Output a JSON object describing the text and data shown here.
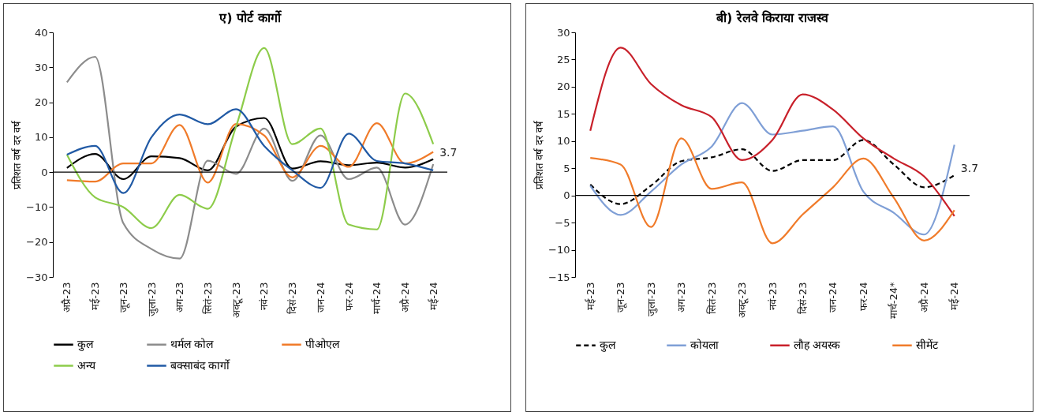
{
  "chart_data": [
    {
      "type": "line",
      "title": "ए) पोर्ट कार्गो",
      "ylabel": "प्रतिशत वर्ष दर वर्ष",
      "categories": [
        "अप्रै-23",
        "मई-23",
        "जून-23",
        "जुला-23",
        "अग-23",
        "सितं-23",
        "अक्टू-23",
        "नवं-23",
        "दिसं-23",
        "जन-24",
        "फर-24",
        "मार्च-24",
        "अप्रै-24",
        "मई-24"
      ],
      "series": [
        {
          "name": "कुल",
          "color": "#000000",
          "line_style": "solid",
          "values": [
            1.2,
            5.2,
            -2,
            4.5,
            4,
            0.5,
            13,
            15.5,
            1,
            3.1,
            2,
            2.7,
            1.3,
            3.7
          ]
        },
        {
          "name": "थर्मल कोल",
          "color": "#8c8c8c",
          "line_style": "solid",
          "values": [
            25.7,
            33,
            -14.6,
            -22,
            -24.7,
            3.3,
            -0.5,
            12.5,
            -2.5,
            10.5,
            -2,
            1.3,
            -15,
            2.3
          ]
        },
        {
          "name": "पीओएल",
          "color": "#f07b2a",
          "line_style": "solid",
          "values": [
            -2.3,
            -2.7,
            2.5,
            2.5,
            13.5,
            -3,
            13.8,
            10.5,
            -1.5,
            7.5,
            1.5,
            14,
            2.5,
            5.8
          ]
        },
        {
          "name": "अन्य",
          "color": "#8dcc4a",
          "line_style": "solid",
          "values": [
            5,
            -7.2,
            -10,
            -16,
            -6.5,
            -10.5,
            13,
            35.5,
            8,
            12.5,
            -15,
            -16.4,
            22.5,
            8
          ]
        },
        {
          "name": "बक्साबंद कार्गो",
          "color": "#215aa5",
          "line_style": "solid",
          "values": [
            5,
            7.5,
            -6,
            10,
            16.5,
            13.7,
            18,
            7.5,
            0.5,
            -4.5,
            11,
            3.2,
            2.5,
            0.5
          ]
        }
      ],
      "ylim": [
        -30,
        40
      ],
      "yticks": [
        -30,
        -20,
        -10,
        0,
        10,
        20,
        30,
        40
      ],
      "grid": false,
      "legend": "bottom",
      "marker": "none",
      "ref_lines": [
        {
          "axis": "y",
          "value": 0,
          "color": "#000000"
        }
      ],
      "annotations": [
        {
          "text": "3.7",
          "x": "मई-24",
          "y": 3.7
        }
      ]
    },
    {
      "type": "line",
      "title": "बी) रेलवे किराया राजस्व",
      "ylabel": "प्रतिशत वर्ष दर वर्ष",
      "categories": [
        "मई-23",
        "जून-23",
        "जुला-23",
        "अग-23",
        "सितं-23",
        "अक्टू-23",
        "नवं-23",
        "दिसं-23",
        "जन-24",
        "फर-24",
        "मार्च-24*",
        "अप्रै-24",
        "मई-24"
      ],
      "series": [
        {
          "name": "कुल",
          "color": "#000000",
          "line_style": "dashed",
          "values": [
            2,
            -1.6,
            1.8,
            6.3,
            7,
            8.5,
            4.5,
            6.5,
            6.5,
            10.2,
            5.7,
            1.5,
            3.7
          ]
        },
        {
          "name": "कोयला",
          "color": "#7f9fd6",
          "line_style": "solid",
          "values": [
            1.8,
            -3.6,
            0.7,
            5.7,
            9,
            17,
            11.2,
            11.9,
            12.7,
            0.7,
            -3.2,
            -7.2,
            9.3
          ]
        },
        {
          "name": "लौह अयस्क",
          "color": "#c8202a",
          "line_style": "solid",
          "values": [
            11.9,
            27.2,
            20.5,
            16.6,
            14.4,
            6.5,
            10.2,
            18.6,
            15.8,
            10.5,
            6.8,
            3.5,
            -3.8
          ]
        },
        {
          "name": "सीमेंट",
          "color": "#f07b2a",
          "line_style": "solid",
          "values": [
            6.9,
            5.7,
            -5.8,
            10.5,
            1.2,
            2.4,
            -8.8,
            -3.5,
            1.5,
            6.8,
            -0.4,
            -8.3,
            -2.7
          ]
        }
      ],
      "ylim": [
        -15,
        30
      ],
      "yticks": [
        -15,
        -10,
        -5,
        0,
        5,
        10,
        15,
        20,
        25,
        30
      ],
      "grid": false,
      "legend": "bottom",
      "marker": "none",
      "ref_lines": [
        {
          "axis": "y",
          "value": 0,
          "color": "#000000"
        }
      ],
      "annotations": [
        {
          "text": "3.7",
          "x": "मई-24",
          "y": 3.7
        }
      ]
    }
  ]
}
